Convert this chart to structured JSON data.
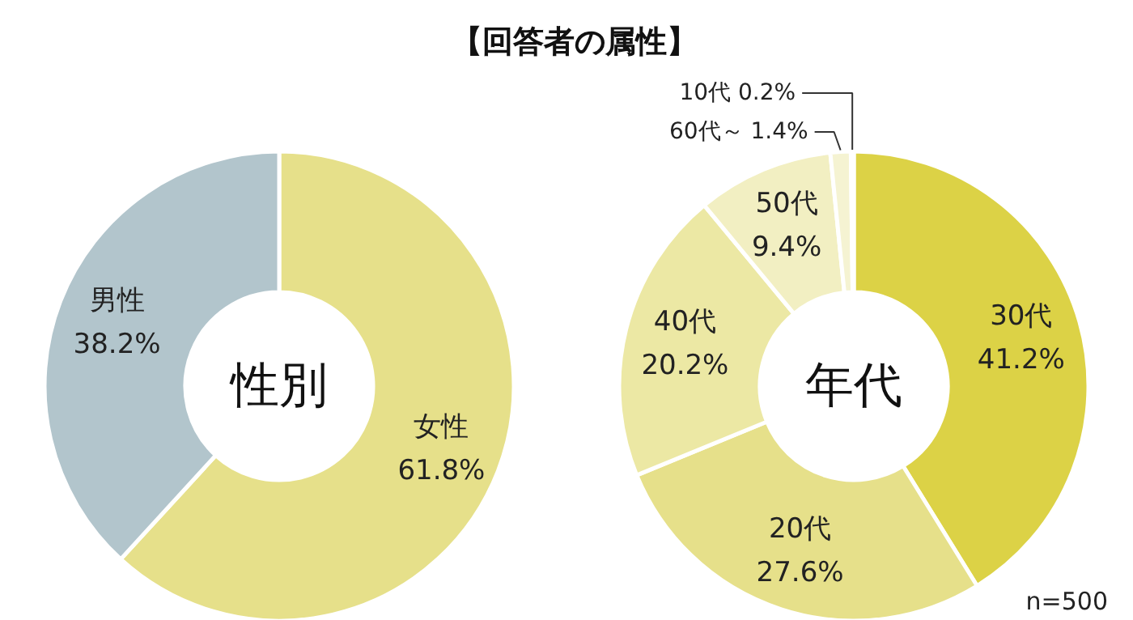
{
  "chart_data": [
    {
      "type": "donut",
      "title": "性別",
      "annotations": [
        "【回答者の属性】"
      ],
      "categories": [
        "女性",
        "男性"
      ],
      "values": [
        61.8,
        38.2
      ],
      "value_labels": [
        "61.8%",
        "38.2%"
      ],
      "colors": [
        "#e6e08a",
        "#b2c5cc"
      ],
      "data_labels": true
    },
    {
      "type": "donut",
      "title": "年代",
      "annotations": [
        "n=500"
      ],
      "categories": [
        "30代",
        "20代",
        "40代",
        "50代",
        "60代～",
        "10代"
      ],
      "values": [
        41.2,
        27.6,
        20.2,
        9.4,
        1.4,
        0.2
      ],
      "value_labels": [
        "41.2%",
        "27.6%",
        "20.2%",
        "9.4%",
        "1.4%",
        "0.2%"
      ],
      "colors": [
        "#dcd246",
        "#e6e08a",
        "#ece8a4",
        "#f2efc2",
        "#f5f3d2",
        "#f7f6dc"
      ],
      "data_labels": true
    }
  ]
}
